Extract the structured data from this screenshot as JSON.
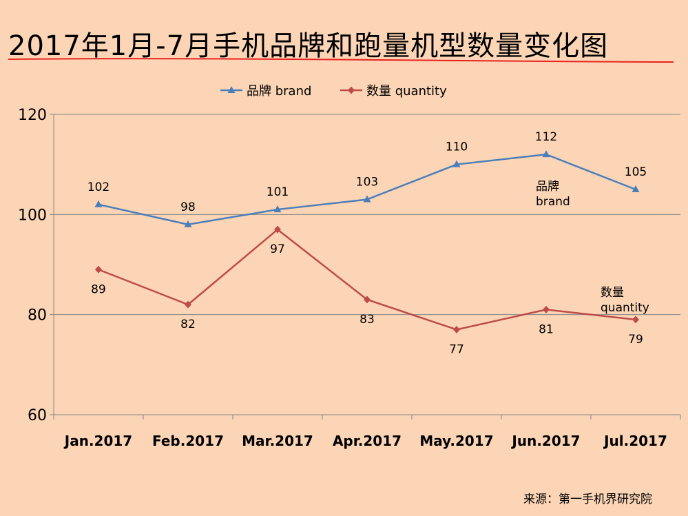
{
  "title": "2017年1月-7月手机品牌和跑量机型数量变化图",
  "source": "来源：第一手机界研究院",
  "colors": {
    "background": "#fbd5b5",
    "brand": "#4a7ebb",
    "quantity": "#be4b48",
    "title_rule": "#e8221f",
    "axis": "#868686"
  },
  "chart_data": {
    "type": "line",
    "categories": [
      "Jan.2017",
      "Feb.2017",
      "Mar.2017",
      "Apr.2017",
      "May.2017",
      "Jun.2017",
      "Jul.2017"
    ],
    "ylim": [
      60,
      120
    ],
    "yticks": [
      60,
      80,
      100,
      120
    ],
    "grid": "horizontal",
    "legend_position": "top-center",
    "series": [
      {
        "name": "品牌 brand",
        "marker": "triangle",
        "label_position": "above",
        "values": [
          102,
          98,
          101,
          103,
          110,
          112,
          105
        ]
      },
      {
        "name": "数量 quantity",
        "marker": "diamond",
        "label_position": "below",
        "values": [
          89,
          82,
          97,
          83,
          77,
          81,
          79
        ]
      }
    ],
    "annotations": [
      {
        "lines": [
          "品牌",
          "brand"
        ],
        "series": "brand"
      },
      {
        "lines": [
          "数量",
          "quantity"
        ],
        "series": "quantity"
      }
    ]
  }
}
